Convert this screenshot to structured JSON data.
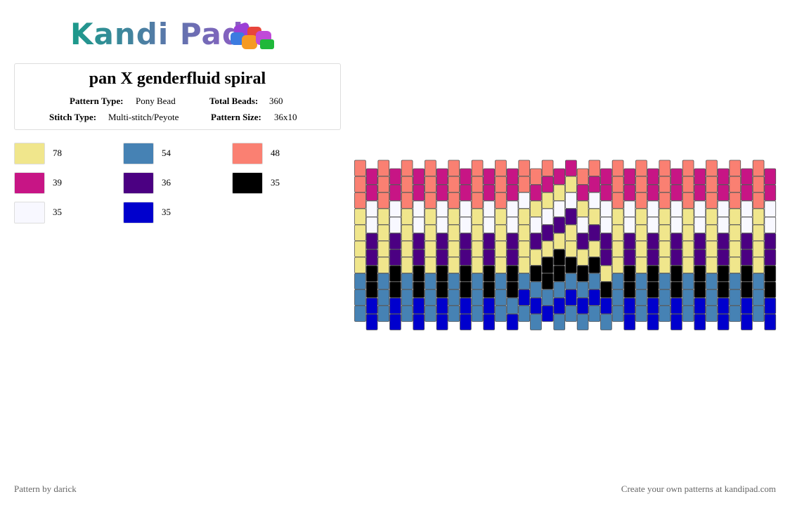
{
  "header": {
    "logo": "Kandi Pad"
  },
  "info": {
    "title": "pan X genderfluid spiral",
    "fields": [
      {
        "label": "Pattern Type:",
        "value": "Pony Bead"
      },
      {
        "label": "Total Beads:",
        "value": "360"
      },
      {
        "label": "Stitch Type:",
        "value": "Multi-stitch/Peyote"
      },
      {
        "label": "Pattern Size:",
        "value": "36x10"
      }
    ]
  },
  "legend": [
    {
      "color": "#f0e68c",
      "count": 78
    },
    {
      "color": "#4682b4",
      "count": 54
    },
    {
      "color": "#fa8072",
      "count": 48
    },
    {
      "color": "#c71585",
      "count": 39
    },
    {
      "color": "#4b0082",
      "count": 36
    },
    {
      "color": "#000000",
      "count": 35
    },
    {
      "color": "#f8f8ff",
      "count": 35
    },
    {
      "color": "#0000cd",
      "count": 35
    }
  ],
  "pattern": {
    "columns": [
      [
        2,
        2,
        2,
        0,
        0,
        0,
        0,
        1,
        1,
        1
      ],
      [
        3,
        3,
        6,
        6,
        4,
        4,
        5,
        5,
        7,
        7
      ],
      [
        2,
        2,
        2,
        0,
        0,
        0,
        0,
        1,
        1,
        1
      ],
      [
        3,
        3,
        6,
        6,
        4,
        4,
        5,
        5,
        7,
        7
      ],
      [
        2,
        2,
        2,
        0,
        0,
        0,
        0,
        1,
        1,
        1
      ],
      [
        3,
        3,
        6,
        6,
        4,
        4,
        5,
        5,
        7,
        7
      ],
      [
        2,
        2,
        2,
        0,
        0,
        0,
        0,
        1,
        1,
        1
      ],
      [
        3,
        3,
        6,
        6,
        4,
        4,
        5,
        5,
        7,
        7
      ],
      [
        2,
        2,
        2,
        0,
        0,
        0,
        0,
        1,
        1,
        1
      ],
      [
        3,
        3,
        6,
        6,
        4,
        4,
        5,
        5,
        7,
        7
      ],
      [
        2,
        2,
        2,
        0,
        0,
        0,
        0,
        1,
        1,
        1
      ],
      [
        3,
        3,
        6,
        6,
        4,
        4,
        5,
        5,
        7,
        7
      ],
      [
        2,
        2,
        2,
        0,
        0,
        0,
        0,
        1,
        1,
        1
      ],
      [
        3,
        3,
        6,
        6,
        4,
        4,
        5,
        5,
        1,
        7
      ],
      [
        2,
        2,
        6,
        0,
        0,
        0,
        0,
        1,
        7,
        1
      ],
      [
        2,
        3,
        0,
        6,
        4,
        0,
        5,
        1,
        7,
        1
      ],
      [
        2,
        3,
        0,
        6,
        4,
        0,
        5,
        5,
        1,
        7
      ],
      [
        3,
        0,
        6,
        4,
        0,
        5,
        5,
        1,
        7,
        1
      ],
      [
        3,
        0,
        6,
        4,
        0,
        0,
        5,
        1,
        7,
        1
      ],
      [
        2,
        3,
        0,
        6,
        4,
        0,
        5,
        1,
        7,
        1
      ],
      [
        2,
        3,
        6,
        0,
        4,
        0,
        5,
        1,
        7,
        1
      ],
      [
        3,
        3,
        6,
        6,
        4,
        4,
        0,
        5,
        7,
        1
      ],
      [
        2,
        2,
        2,
        0,
        0,
        0,
        0,
        1,
        1,
        1
      ],
      [
        3,
        3,
        6,
        6,
        4,
        4,
        5,
        5,
        7,
        7
      ],
      [
        2,
        2,
        2,
        0,
        0,
        0,
        0,
        1,
        1,
        1
      ],
      [
        3,
        3,
        6,
        6,
        4,
        4,
        5,
        5,
        7,
        7
      ],
      [
        2,
        2,
        2,
        0,
        0,
        0,
        0,
        1,
        1,
        1
      ],
      [
        3,
        3,
        6,
        6,
        4,
        4,
        5,
        5,
        7,
        7
      ],
      [
        2,
        2,
        2,
        0,
        0,
        0,
        0,
        1,
        1,
        1
      ],
      [
        3,
        3,
        6,
        6,
        4,
        4,
        5,
        5,
        7,
        7
      ],
      [
        2,
        2,
        2,
        0,
        0,
        0,
        0,
        1,
        1,
        1
      ],
      [
        3,
        3,
        6,
        6,
        4,
        4,
        5,
        5,
        7,
        7
      ],
      [
        2,
        2,
        2,
        0,
        0,
        0,
        0,
        1,
        1,
        1
      ],
      [
        3,
        3,
        6,
        6,
        4,
        4,
        5,
        5,
        7,
        7
      ],
      [
        2,
        2,
        2,
        0,
        0,
        0,
        0,
        1,
        1,
        1
      ],
      [
        3,
        3,
        6,
        6,
        4,
        4,
        5,
        5,
        7,
        7
      ]
    ]
  },
  "footer": {
    "left": "Pattern by darick",
    "right": "Create your own patterns at kandipad.com"
  }
}
